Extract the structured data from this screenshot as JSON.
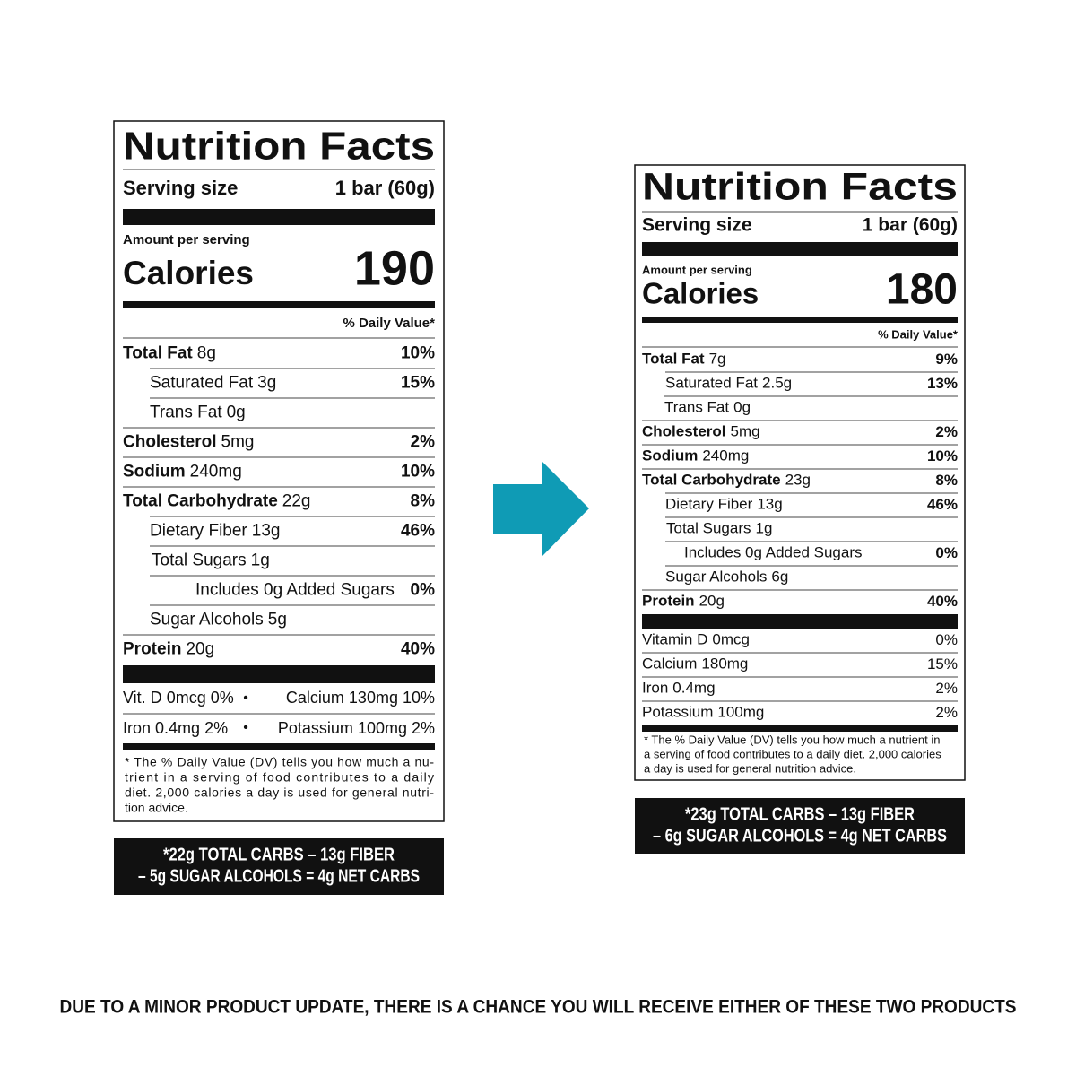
{
  "labels": [
    {
      "title": "Nutrition Facts",
      "serving_size_label": "Serving size",
      "serving_size": "1 bar (60g)",
      "amount_per_serving": "Amount per serving",
      "calories_label": "Calories",
      "calories": "190",
      "daily_value_header": "% Daily Value*",
      "nutrients": [
        {
          "name": "Total Fat",
          "amount": "8g",
          "dv": "10%"
        },
        {
          "name": "Saturated Fat",
          "amount": "3g",
          "dv": "15%"
        },
        {
          "name": "Trans Fat",
          "amount": "0g"
        },
        {
          "name": "Cholesterol",
          "amount": "5mg",
          "dv": "2%"
        },
        {
          "name": "Sodium",
          "amount": "240mg",
          "dv": "10%"
        },
        {
          "name": "Total Carbohydrate",
          "amount": "22g",
          "dv": "8%"
        },
        {
          "name": "Dietary Fiber",
          "amount": "13g",
          "dv": "46%"
        },
        {
          "name": "Total Sugars",
          "amount": "1g"
        },
        {
          "name": "Includes 0g Added Sugars",
          "amount": "",
          "dv": "0%"
        },
        {
          "name": "Sugar Alcohols",
          "amount": "5g"
        },
        {
          "name": "Protein",
          "amount": "20g",
          "dv": "40%"
        }
      ],
      "vitamins": [
        {
          "name": "Vit. D",
          "amount": "0mcg",
          "dv": "0%"
        },
        {
          "name": "Calcium",
          "amount": "130mg",
          "dv": "10%"
        },
        {
          "name": "Iron",
          "amount": "0.4mg",
          "dv": "2%"
        },
        {
          "name": "Potassium",
          "amount": "100mg",
          "dv": "2%"
        }
      ],
      "footnote": [
        "* The % Daily Value (DV) tells you how much a nu-",
        "trient in a serving of food contributes to a daily",
        "diet. 2,000 calories a day is used for general nutri-",
        "tion advice."
      ],
      "net_carbs": [
        "*22g TOTAL CARBS – 13g FIBER",
        "– 5g SUGAR ALCOHOLS = 4g NET CARBS"
      ]
    },
    {
      "title": "Nutrition Facts",
      "serving_size_label": "Serving size",
      "serving_size": "1 bar (60g)",
      "amount_per_serving": "Amount per serving",
      "calories_label": "Calories",
      "calories": "180",
      "daily_value_header": "% Daily Value*",
      "nutrients": [
        {
          "name": "Total Fat",
          "amount": "7g",
          "dv": "9%"
        },
        {
          "name": "Saturated Fat",
          "amount": "2.5g",
          "dv": "13%"
        },
        {
          "name": "Trans Fat",
          "amount": "0g"
        },
        {
          "name": "Cholesterol",
          "amount": "5mg",
          "dv": "2%"
        },
        {
          "name": "Sodium",
          "amount": "240mg",
          "dv": "10%"
        },
        {
          "name": "Total Carbohydrate",
          "amount": "23g",
          "dv": "8%"
        },
        {
          "name": "Dietary Fiber",
          "amount": "13g",
          "dv": "46%"
        },
        {
          "name": "Total Sugars",
          "amount": "1g"
        },
        {
          "name": "Includes 0g Added Sugars",
          "amount": "",
          "dv": "0%"
        },
        {
          "name": "Sugar Alcohols",
          "amount": "6g"
        },
        {
          "name": "Protein",
          "amount": "20g",
          "dv": "40%"
        }
      ],
      "vitamins": [
        {
          "name": "Vitamin D",
          "amount": "0mcg",
          "dv": "0%"
        },
        {
          "name": "Calcium",
          "amount": "180mg",
          "dv": "15%"
        },
        {
          "name": "Iron",
          "amount": "0.4mg",
          "dv": "2%"
        },
        {
          "name": "Potassium",
          "amount": "100mg",
          "dv": "2%"
        }
      ],
      "footnote": [
        "* The % Daily Value (DV) tells you how much a nutrient in",
        "a serving of food contributes to a daily diet. 2,000 calories",
        "a day is used for general nutrition advice."
      ],
      "net_carbs": [
        "*23g TOTAL CARBS – 13g FIBER",
        "– 6g SUGAR ALCOHOLS = 4g NET CARBS"
      ]
    }
  ],
  "notice": "DUE TO A MINOR PRODUCT UPDATE, THERE IS A CHANCE YOU WILL RECEIVE EITHER OF THESE TWO PRODUCTS"
}
